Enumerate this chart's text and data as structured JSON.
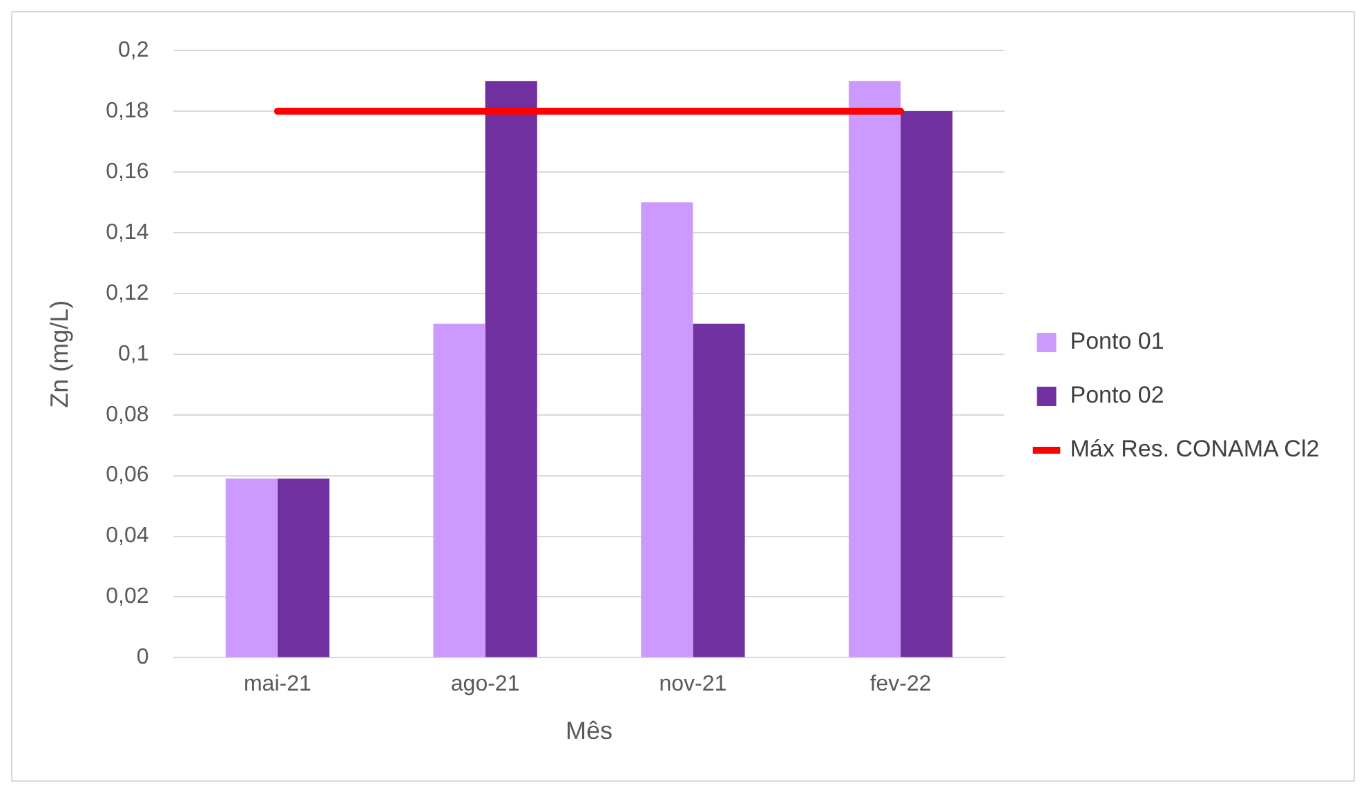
{
  "chart_data": {
    "type": "bar",
    "xlabel": "Mês",
    "ylabel": "Zn (mg/L)",
    "categories": [
      "mai-21",
      "ago-21",
      "nov-21",
      "fev-22"
    ],
    "series": [
      {
        "name": "Ponto 01",
        "color": "#cc99ff",
        "values": [
          0.059,
          0.11,
          0.15,
          0.19
        ]
      },
      {
        "name": "Ponto 02",
        "color": "#7030a0",
        "values": [
          0.059,
          0.19,
          0.11,
          0.18
        ]
      },
      {
        "name": "Máx Res. CONAMA Cl2",
        "type": "line",
        "color": "#ff0000",
        "values": [
          0.18,
          0.18,
          0.18,
          0.18
        ]
      }
    ],
    "ylim": [
      0,
      0.2
    ],
    "yticks": [
      0,
      {
        "value": 0.02,
        "label": "0,02"
      },
      {
        "value": 0.04,
        "label": "0,04"
      },
      {
        "value": 0.06,
        "label": "0,06"
      },
      {
        "value": 0.08,
        "label": "0,08"
      },
      {
        "value": 0.1,
        "label": "0,1"
      },
      {
        "value": 0.12,
        "label": "0,12"
      },
      {
        "value": 0.14,
        "label": "0,14"
      },
      {
        "value": 0.16,
        "label": "0,16"
      },
      {
        "value": 0.18,
        "label": "0,18"
      },
      {
        "value": 0.2,
        "label": "0,2"
      }
    ],
    "grid": "y",
    "legend": "right",
    "marker": "none"
  }
}
